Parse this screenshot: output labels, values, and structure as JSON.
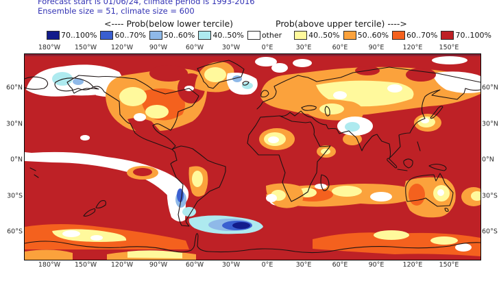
{
  "header": {
    "line1": "Forecast start is 01/06/24, climate period is 1993-2016",
    "line2": "Ensemble size = 51, climate size = 600"
  },
  "legend": {
    "below_header": "<---- Prob(below lower tercile)",
    "above_header": "Prob(above upper tercile) ---->",
    "below_items": [
      {
        "label": "70..100%",
        "color": "#121c8b"
      },
      {
        "label": "60..70%",
        "color": "#3a5fd0"
      },
      {
        "label": "50..60%",
        "color": "#8fb9e8"
      },
      {
        "label": "40..50%",
        "color": "#aeeaef"
      },
      {
        "label": "other",
        "color": "#ffffff"
      }
    ],
    "above_items": [
      {
        "label": "40..50%",
        "color": "#fff99c"
      },
      {
        "label": "50..60%",
        "color": "#fba23c"
      },
      {
        "label": "60..70%",
        "color": "#f4611e"
      },
      {
        "label": "70..100%",
        "color": "#be2126"
      }
    ]
  },
  "map": {
    "x_tick_labels": [
      "180°W",
      "150°W",
      "120°W",
      "90°W",
      "60°W",
      "30°W",
      "0°E",
      "30°E",
      "60°E",
      "90°E",
      "120°E",
      "150°E"
    ],
    "y_tick_labels": [
      "60°N",
      "30°N",
      "0°N",
      "30°S",
      "60°S"
    ],
    "base_color": "#be2126",
    "outline_color": "#1c1212"
  }
}
